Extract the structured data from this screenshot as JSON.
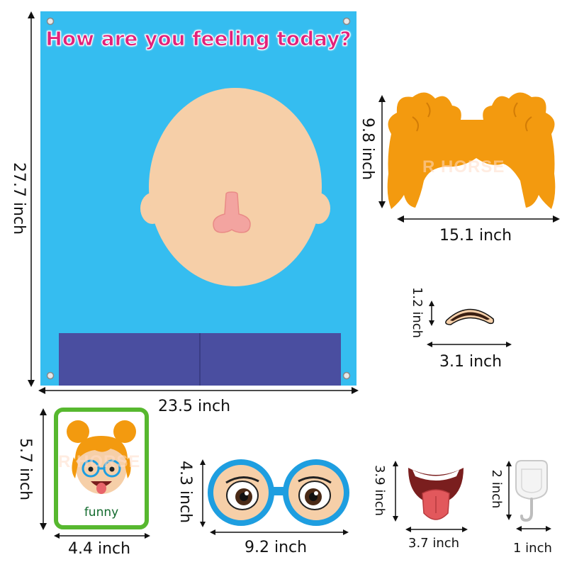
{
  "poster": {
    "title": "How are you feeling today?",
    "height_label": "27.7 inch",
    "width_label": "23.5 inch",
    "background_color": "#35bdf0",
    "pocket_color": "#4a4ea0"
  },
  "hair": {
    "height_label": "9.8 inch",
    "width_label": "15.1 inch",
    "watermark": "R HORSE",
    "color": "#f39a0f"
  },
  "eyebrow": {
    "height_label": "1.2 inch",
    "width_label": "3.1 inch"
  },
  "card": {
    "height_label": "5.7 inch",
    "width_label": "4.4 inch",
    "emotion_label": "funny",
    "watermark": "R HORSE",
    "border_color": "#57b82f"
  },
  "glasses": {
    "height_label": "4.3 inch",
    "width_label": "9.2 inch",
    "frame_color": "#1e9ee0"
  },
  "mouth": {
    "height_label": "3.9 inch",
    "width_label": "3.7 inch"
  },
  "hook": {
    "height_label": "2 inch",
    "width_label": "1 inch"
  }
}
